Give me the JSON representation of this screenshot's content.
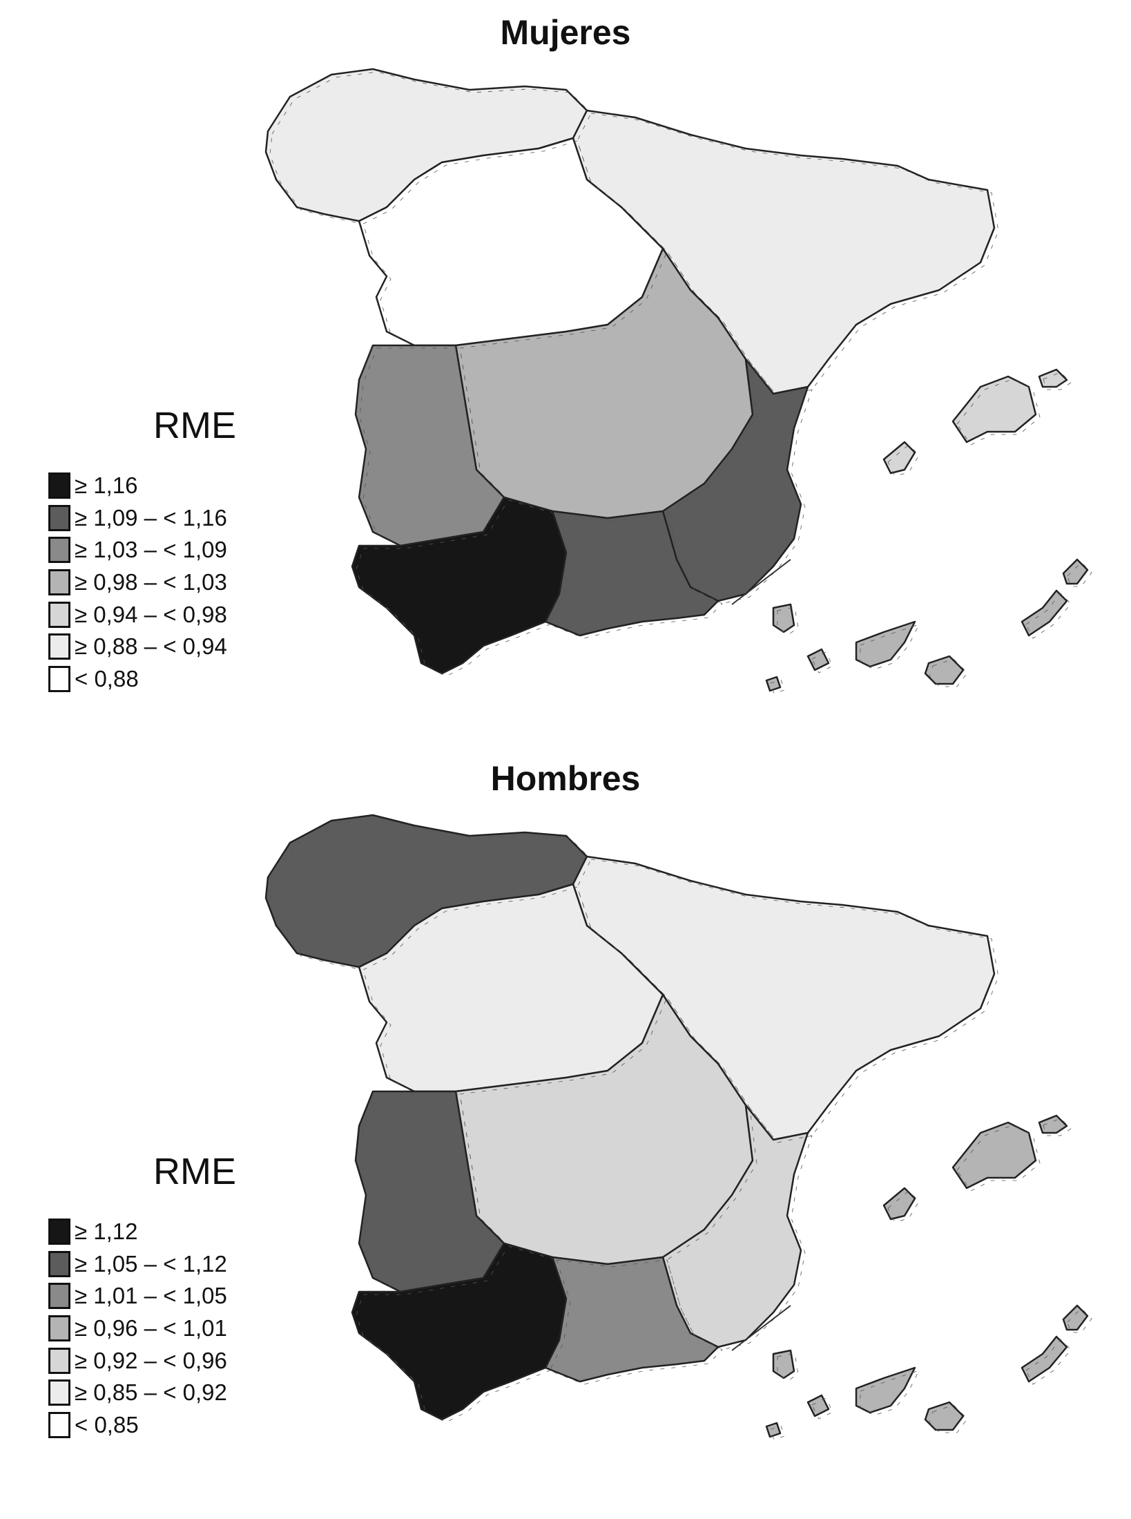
{
  "maps": [
    {
      "title": "Mujeres",
      "legend_title": "RME",
      "legend": [
        {
          "label": "≥ 1,16",
          "color": "#161616"
        },
        {
          "label": "≥ 1,09 – < 1,16",
          "color": "#5c5c5c"
        },
        {
          "label": "≥ 1,03 – < 1,09",
          "color": "#8a8a8a"
        },
        {
          "label": "≥ 0,98 – < 1,03",
          "color": "#b4b4b4"
        },
        {
          "label": "≥ 0,94 – < 0,98",
          "color": "#d6d6d6"
        },
        {
          "label": "≥ 0,88 – < 0,94",
          "color": "#ececec"
        },
        {
          "label": "< 0,88",
          "color": "#ffffff"
        }
      ],
      "regions": [
        {
          "name": "north-galicia-cantabria",
          "class": 5
        },
        {
          "name": "northeast-aragon-catalonia",
          "class": 5
        },
        {
          "name": "castilla-leon",
          "class": 6
        },
        {
          "name": "madrid-castilla-la-mancha",
          "class": 3
        },
        {
          "name": "extremadura",
          "class": 2
        },
        {
          "name": "valencia-murcia",
          "class": 1
        },
        {
          "name": "andalucia-west",
          "class": 0
        },
        {
          "name": "andalucia-east",
          "class": 1
        },
        {
          "name": "baleares",
          "class": 4
        },
        {
          "name": "canarias",
          "class": 3
        }
      ]
    },
    {
      "title": "Hombres",
      "legend_title": "RME",
      "legend": [
        {
          "label": "≥ 1,12",
          "color": "#161616"
        },
        {
          "label": "≥ 1,05 – < 1,12",
          "color": "#5c5c5c"
        },
        {
          "label": "≥ 1,01 – < 1,05",
          "color": "#8a8a8a"
        },
        {
          "label": "≥ 0,96 – < 1,01",
          "color": "#b4b4b4"
        },
        {
          "label": "≥ 0,92 – < 0,96",
          "color": "#d6d6d6"
        },
        {
          "label": "≥ 0,85 – < 0,92",
          "color": "#ececec"
        },
        {
          "label": "< 0,85",
          "color": "#ffffff"
        }
      ],
      "regions": [
        {
          "name": "north-galicia-cantabria",
          "class": 1
        },
        {
          "name": "northeast-aragon-catalonia",
          "class": 5
        },
        {
          "name": "castilla-leon",
          "class": 5
        },
        {
          "name": "madrid-castilla-la-mancha",
          "class": 4
        },
        {
          "name": "extremadura",
          "class": 1
        },
        {
          "name": "valencia-murcia",
          "class": 4
        },
        {
          "name": "andalucia-west",
          "class": 0
        },
        {
          "name": "andalucia-east",
          "class": 2
        },
        {
          "name": "baleares",
          "class": 3
        },
        {
          "name": "canarias",
          "class": 3
        }
      ]
    }
  ]
}
